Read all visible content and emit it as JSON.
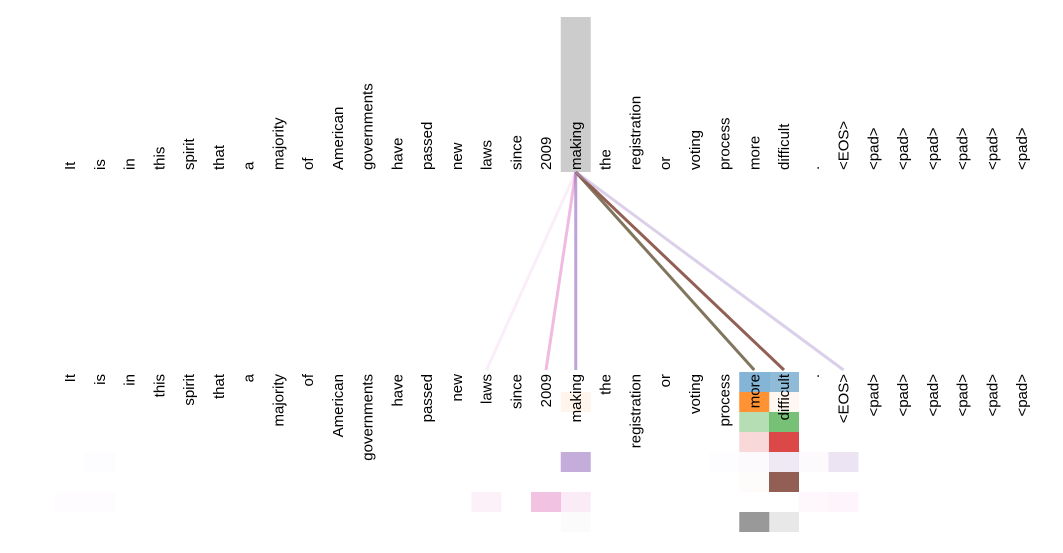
{
  "tokens": [
    "It",
    "is",
    "in",
    "this",
    "spirit",
    "that",
    "a",
    "majority",
    "of",
    "American",
    "governments",
    "have",
    "passed",
    "new",
    "laws",
    "since",
    "2009",
    "making",
    "the",
    "registration",
    "or",
    "voting",
    "process",
    "more",
    "difficult",
    ".",
    "<EOS>",
    "<pad>",
    "<pad>",
    "<pad>",
    "<pad>",
    "<pad>",
    "<pad>"
  ],
  "selected_token_index": 17,
  "head_colors": [
    "#1f77b4",
    "#ff7f0e",
    "#2ca02c",
    "#d62728",
    "#9467bd",
    "#8c564b",
    "#e377c2",
    "#7f7f7f"
  ],
  "attention": [
    [
      [
        23,
        0.55
      ],
      [
        24,
        0.5
      ]
    ],
    [
      [
        17,
        0.08
      ],
      [
        23,
        0.85
      ],
      [
        24,
        0.06
      ]
    ],
    [
      [
        23,
        0.35
      ],
      [
        24,
        0.65
      ]
    ],
    [
      [
        23,
        0.18
      ],
      [
        24,
        0.85
      ]
    ],
    [
      [
        1,
        0.02
      ],
      [
        17,
        0.55
      ],
      [
        22,
        0.02
      ],
      [
        23,
        0.03
      ],
      [
        24,
        0.15
      ],
      [
        25,
        0.03
      ],
      [
        26,
        0.18
      ]
    ],
    [
      [
        23,
        0.02
      ],
      [
        24,
        0.95
      ]
    ],
    [
      [
        0,
        0.02
      ],
      [
        1,
        0.02
      ],
      [
        14,
        0.1
      ],
      [
        16,
        0.45
      ],
      [
        17,
        0.15
      ],
      [
        25,
        0.05
      ],
      [
        26,
        0.07
      ]
    ],
    [
      [
        17,
        0.03
      ],
      [
        23,
        0.8
      ],
      [
        24,
        0.18
      ]
    ]
  ],
  "lines": [
    {
      "target": 14,
      "color": "#e377c2",
      "opacity": 0.12
    },
    {
      "target": 16,
      "color": "#e377c2",
      "opacity": 0.5
    },
    {
      "target": 17,
      "color": "#9467bd",
      "opacity": 0.6
    },
    {
      "target": 23,
      "color": "#7a6e55",
      "opacity": 0.95
    },
    {
      "target": 24,
      "color": "#8c564b",
      "opacity": 0.95
    },
    {
      "target": 26,
      "color": "#b89fd6",
      "opacity": 0.5
    }
  ]
}
